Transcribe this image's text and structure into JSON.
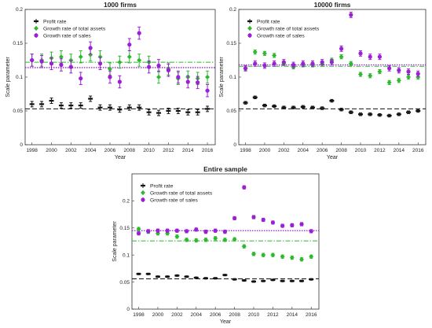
{
  "colors": {
    "profit": "#111111",
    "assets": "#2eb82e",
    "sales": "#9a1fd6"
  },
  "icons": {
    "profit": "errorbar-marker-icon",
    "assets": "diamond-marker-icon",
    "sales": "circle-marker-icon"
  },
  "chart_data": [
    {
      "type": "scatter",
      "title": "1000 firms",
      "xlabel": "Year",
      "ylabel": "Scale parameter",
      "xlim": [
        1997.3,
        2016.8
      ],
      "ylim": [
        0,
        0.2
      ],
      "xticks": [
        "1998",
        "2000",
        "2002",
        "2004",
        "2006",
        "2008",
        "2010",
        "2012",
        "2014",
        "2016"
      ],
      "yticks": [
        "0",
        "0.05",
        "0.1",
        "0.15",
        "0.2"
      ],
      "legend": [
        "Profit rate",
        "Growth rate of total assets",
        "Growth rate of sales"
      ],
      "legend_position": "top-left",
      "x": [
        1998,
        1999,
        2000,
        2001,
        2002,
        2003,
        2004,
        2005,
        2006,
        2007,
        2008,
        2009,
        2010,
        2011,
        2012,
        2013,
        2014,
        2015,
        2016
      ],
      "series": [
        {
          "name": "Profit rate",
          "values": [
            0.06,
            0.06,
            0.065,
            0.058,
            0.058,
            0.058,
            0.068,
            0.055,
            0.055,
            0.052,
            0.055,
            0.055,
            0.048,
            0.047,
            0.05,
            0.05,
            0.048,
            0.048,
            0.053
          ],
          "err": 0.004,
          "reference": 0.053
        },
        {
          "name": "Growth rate of total assets",
          "values": [
            0.125,
            0.125,
            0.128,
            0.13,
            0.125,
            0.13,
            0.133,
            0.13,
            0.112,
            0.122,
            0.13,
            0.125,
            0.122,
            0.1,
            0.112,
            0.098,
            0.1,
            0.098,
            0.1
          ],
          "err": 0.009,
          "reference": 0.122
        },
        {
          "name": "Growth rate of sales",
          "values": [
            0.125,
            0.123,
            0.12,
            0.118,
            0.115,
            0.098,
            0.143,
            0.12,
            0.1,
            0.093,
            0.148,
            0.165,
            0.115,
            0.117,
            0.11,
            0.1,
            0.093,
            0.092,
            0.08
          ],
          "err": 0.009,
          "reference": 0.114
        }
      ]
    },
    {
      "type": "scatter",
      "title": "10000 firms",
      "xlabel": "Year",
      "ylabel": "Scale parameter",
      "xlim": [
        1997.3,
        2016.8
      ],
      "ylim": [
        0,
        0.2
      ],
      "xticks": [
        "1998",
        "2000",
        "2002",
        "2004",
        "2006",
        "2008",
        "2010",
        "2012",
        "2014",
        "2016"
      ],
      "yticks": [
        "0",
        "0.05",
        "0.1",
        "0.15",
        "0.2"
      ],
      "legend": [
        "Profit rate",
        "Growth rate of total assets",
        "Growth rate of sales"
      ],
      "legend_position": "top-left",
      "x": [
        1998,
        1999,
        2000,
        2001,
        2002,
        2003,
        2004,
        2005,
        2006,
        2007,
        2008,
        2009,
        2010,
        2011,
        2012,
        2013,
        2014,
        2015,
        2016
      ],
      "series": [
        {
          "name": "Profit rate",
          "values": [
            0.062,
            0.07,
            0.058,
            0.057,
            0.055,
            0.055,
            0.056,
            0.055,
            0.054,
            0.065,
            0.052,
            0.048,
            0.045,
            0.045,
            0.044,
            0.043,
            0.045,
            0.048,
            0.05
          ],
          "err": 0.002,
          "reference": 0.053
        },
        {
          "name": "Growth rate of total assets",
          "values": [
            0.113,
            0.137,
            0.135,
            0.132,
            0.12,
            0.115,
            0.118,
            0.118,
            0.119,
            0.125,
            0.13,
            0.12,
            0.104,
            0.102,
            0.108,
            0.092,
            0.095,
            0.1,
            0.1
          ],
          "err": 0.003,
          "reference": 0.116
        },
        {
          "name": "Growth rate of sales",
          "values": [
            0.113,
            0.12,
            0.117,
            0.12,
            0.122,
            0.118,
            0.12,
            0.12,
            0.122,
            0.122,
            0.142,
            0.192,
            0.135,
            0.13,
            0.13,
            0.113,
            0.11,
            0.108,
            0.105
          ],
          "err": 0.004,
          "reference": 0.118
        }
      ]
    },
    {
      "type": "scatter",
      "title": "Entire sample",
      "xlabel": "Year",
      "ylabel": "Scale parameter",
      "xlim": [
        1997.3,
        2016.8
      ],
      "ylim": [
        0,
        0.25
      ],
      "xticks": [
        "1998",
        "2000",
        "2002",
        "2004",
        "2006",
        "2008",
        "2010",
        "2012",
        "2014",
        "2016"
      ],
      "yticks": [
        "0",
        "0.05",
        "0.1",
        "0.15",
        "0.2"
      ],
      "legend": [
        "Profit rate",
        "Growth rate of total assets",
        "Growth rate of sales"
      ],
      "legend_position": "top-left",
      "x": [
        1998,
        1999,
        2000,
        2001,
        2002,
        2003,
        2004,
        2005,
        2006,
        2007,
        2008,
        2009,
        2010,
        2011,
        2012,
        2013,
        2014,
        2015,
        2016
      ],
      "series": [
        {
          "name": "Profit rate",
          "values": [
            0.065,
            0.065,
            0.06,
            0.06,
            0.062,
            0.06,
            0.058,
            0.057,
            0.057,
            0.063,
            0.055,
            0.053,
            0.051,
            0.052,
            0.054,
            0.052,
            0.052,
            0.052,
            0.055
          ],
          "err": 0.0015,
          "reference": 0.056
        },
        {
          "name": "Growth rate of total assets",
          "values": [
            0.148,
            0.143,
            0.14,
            0.14,
            0.134,
            0.128,
            0.127,
            0.128,
            0.131,
            0.128,
            0.129,
            0.116,
            0.102,
            0.1,
            0.1,
            0.097,
            0.095,
            0.092,
            0.097
          ],
          "err": 0.003,
          "reference": 0.126
        },
        {
          "name": "Growth rate of sales",
          "values": [
            0.14,
            0.144,
            0.145,
            0.145,
            0.145,
            0.144,
            0.147,
            0.143,
            0.145,
            0.143,
            0.168,
            0.225,
            0.17,
            0.165,
            0.16,
            0.154,
            0.155,
            0.157,
            0.144
          ],
          "err": 0.003,
          "reference": 0.145
        }
      ]
    }
  ]
}
